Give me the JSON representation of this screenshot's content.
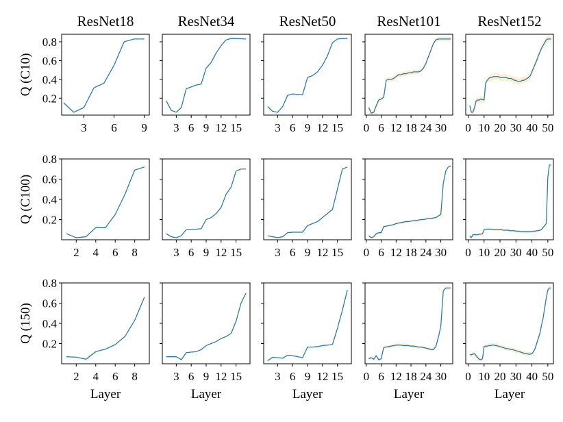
{
  "figure": {
    "column_titles": [
      "ResNet18",
      "ResNet34",
      "ResNet50",
      "ResNet101",
      "ResNet152"
    ],
    "row_ylabels": [
      "Q (C10)",
      "Q (C100)",
      "Q (150)"
    ],
    "xlabel": "Layer"
  },
  "colors": {
    "line": "#2a7ab0",
    "band": "#fbe2ad",
    "axis": "#000000"
  },
  "chart_data": [
    {
      "type": "line",
      "row": 0,
      "col": 0,
      "title": "ResNet18",
      "ylabel": "Q (C10)",
      "xlabel": "",
      "xlim": [
        0.8,
        9.5
      ],
      "ylim": [
        0.02,
        0.88
      ],
      "xticks": [
        3,
        6,
        9
      ],
      "xtick_labels": [
        "3",
        "6",
        "9"
      ],
      "yticks": [
        0.2,
        0.4,
        0.6,
        0.8
      ],
      "ytick_labels": [
        "0.2",
        "0.4",
        "0.6",
        "0.8"
      ],
      "x": [
        1,
        2,
        3,
        4,
        5,
        6,
        7,
        8,
        9
      ],
      "y": [
        0.15,
        0.05,
        0.1,
        0.31,
        0.36,
        0.55,
        0.8,
        0.83,
        0.83
      ],
      "band": 0
    },
    {
      "type": "line",
      "row": 0,
      "col": 1,
      "title": "ResNet34",
      "ylabel": "",
      "xlabel": "",
      "xlim": [
        0.2,
        17.8
      ],
      "ylim": [
        0.02,
        0.88
      ],
      "xticks": [
        3,
        6,
        9,
        12,
        15
      ],
      "xtick_labels": [
        "3",
        "6",
        "9",
        "12",
        "15"
      ],
      "yticks": [
        0.2,
        0.4,
        0.6,
        0.8
      ],
      "ytick_labels": [
        "",
        "",
        "",
        ""
      ],
      "x": [
        1,
        2,
        3,
        4,
        5,
        6,
        7,
        8,
        9,
        10,
        11,
        12,
        13,
        14,
        15,
        16,
        17
      ],
      "y": [
        0.17,
        0.07,
        0.05,
        0.1,
        0.3,
        0.32,
        0.34,
        0.35,
        0.52,
        0.58,
        0.68,
        0.76,
        0.82,
        0.835,
        0.835,
        0.832,
        0.83
      ],
      "band": 0
    },
    {
      "type": "line",
      "row": 0,
      "col": 2,
      "title": "ResNet50",
      "ylabel": "",
      "xlabel": "",
      "xlim": [
        0.2,
        17.8
      ],
      "ylim": [
        0.02,
        0.88
      ],
      "xticks": [
        3,
        6,
        9,
        12,
        15
      ],
      "xtick_labels": [
        "3",
        "6",
        "9",
        "12",
        "15"
      ],
      "yticks": [
        0.2,
        0.4,
        0.6,
        0.8
      ],
      "ytick_labels": [
        "",
        "",
        "",
        ""
      ],
      "x": [
        1,
        2,
        3,
        4,
        5,
        6,
        7,
        8,
        9,
        10,
        11,
        12,
        13,
        14,
        15,
        16,
        17
      ],
      "y": [
        0.11,
        0.06,
        0.05,
        0.11,
        0.23,
        0.245,
        0.24,
        0.235,
        0.42,
        0.44,
        0.48,
        0.55,
        0.65,
        0.79,
        0.83,
        0.835,
        0.835
      ],
      "band": 0
    },
    {
      "type": "line",
      "row": 0,
      "col": 3,
      "title": "ResNet101",
      "ylabel": "",
      "xlabel": "",
      "xlim": [
        -0.5,
        34.8
      ],
      "ylim": [
        0.02,
        0.88
      ],
      "xticks": [
        0,
        6,
        12,
        18,
        24,
        30
      ],
      "xtick_labels": [
        "0",
        "6",
        "12",
        "18",
        "24",
        "30"
      ],
      "yticks": [
        0.2,
        0.4,
        0.6,
        0.8
      ],
      "ytick_labels": [
        "",
        "",
        "",
        ""
      ],
      "x": [
        1,
        2,
        3,
        4,
        5,
        6,
        7,
        8,
        9,
        10,
        11,
        12,
        13,
        14,
        15,
        16,
        17,
        18,
        19,
        20,
        21,
        22,
        23,
        24,
        25,
        26,
        27,
        28,
        29,
        30,
        31,
        32,
        33,
        34
      ],
      "y": [
        0.1,
        0.04,
        0.05,
        0.12,
        0.18,
        0.19,
        0.21,
        0.39,
        0.4,
        0.4,
        0.41,
        0.43,
        0.45,
        0.45,
        0.46,
        0.46,
        0.47,
        0.47,
        0.48,
        0.48,
        0.48,
        0.49,
        0.52,
        0.57,
        0.64,
        0.71,
        0.78,
        0.82,
        0.83,
        0.83,
        0.83,
        0.83,
        0.83,
        0.83
      ],
      "band": 0.025
    },
    {
      "type": "line",
      "row": 0,
      "col": 4,
      "title": "ResNet152",
      "ylabel": "",
      "xlabel": "",
      "xlim": [
        -1.5,
        53.5
      ],
      "ylim": [
        0.02,
        0.88
      ],
      "xticks": [
        0,
        10,
        20,
        30,
        40,
        50
      ],
      "xtick_labels": [
        "0",
        "10",
        "20",
        "30",
        "40",
        "50"
      ],
      "yticks": [
        0.2,
        0.4,
        0.6,
        0.8
      ],
      "ytick_labels": [
        "",
        "",
        "",
        ""
      ],
      "x": [
        1,
        2,
        3,
        4,
        5,
        6,
        7,
        8,
        9,
        10,
        11,
        12,
        13,
        14,
        15,
        16,
        17,
        18,
        19,
        20,
        21,
        22,
        23,
        24,
        25,
        26,
        27,
        28,
        29,
        30,
        31,
        32,
        33,
        34,
        35,
        36,
        37,
        38,
        39,
        40,
        41,
        42,
        43,
        44,
        45,
        46,
        47,
        48,
        49,
        50,
        51,
        52
      ],
      "y": [
        0.12,
        0.05,
        0.05,
        0.1,
        0.17,
        0.18,
        0.18,
        0.19,
        0.185,
        0.18,
        0.36,
        0.39,
        0.41,
        0.42,
        0.42,
        0.43,
        0.43,
        0.43,
        0.43,
        0.42,
        0.42,
        0.42,
        0.42,
        0.42,
        0.41,
        0.41,
        0.41,
        0.4,
        0.39,
        0.39,
        0.38,
        0.38,
        0.38,
        0.39,
        0.39,
        0.4,
        0.41,
        0.42,
        0.44,
        0.48,
        0.52,
        0.56,
        0.6,
        0.65,
        0.69,
        0.73,
        0.76,
        0.79,
        0.82,
        0.83,
        0.83,
        0.83
      ],
      "band": 0.035
    },
    {
      "type": "line",
      "row": 1,
      "col": 0,
      "title": "",
      "ylabel": "Q (C100)",
      "xlabel": "",
      "xlim": [
        0.5,
        9.5
      ],
      "ylim": [
        0.0,
        0.8
      ],
      "xticks": [
        2,
        4,
        6,
        8
      ],
      "xtick_labels": [
        "2",
        "4",
        "6",
        "8"
      ],
      "yticks": [
        0.2,
        0.4,
        0.6,
        0.8
      ],
      "ytick_labels": [
        "0.2",
        "0.4",
        "0.6",
        "0.8"
      ],
      "x": [
        1,
        2,
        3,
        4,
        5,
        6,
        7,
        8,
        9
      ],
      "y": [
        0.06,
        0.02,
        0.03,
        0.12,
        0.12,
        0.25,
        0.45,
        0.69,
        0.72
      ],
      "band": 0
    },
    {
      "type": "line",
      "row": 1,
      "col": 1,
      "title": "",
      "ylabel": "",
      "xlabel": "",
      "xlim": [
        0.2,
        17.8
      ],
      "ylim": [
        0.0,
        0.8
      ],
      "xticks": [
        3,
        6,
        9,
        12,
        15
      ],
      "xtick_labels": [
        "3",
        "6",
        "9",
        "12",
        "15"
      ],
      "yticks": [
        0.2,
        0.4,
        0.6,
        0.8
      ],
      "ytick_labels": [
        "",
        "",
        "",
        ""
      ],
      "x": [
        1,
        2,
        3,
        4,
        5,
        6,
        7,
        8,
        9,
        10,
        11,
        12,
        13,
        14,
        15,
        16,
        17
      ],
      "y": [
        0.06,
        0.03,
        0.02,
        0.04,
        0.1,
        0.1,
        0.105,
        0.11,
        0.2,
        0.22,
        0.26,
        0.32,
        0.45,
        0.52,
        0.68,
        0.7,
        0.7
      ],
      "band": 0
    },
    {
      "type": "line",
      "row": 1,
      "col": 2,
      "title": "",
      "ylabel": "",
      "xlabel": "",
      "xlim": [
        0.2,
        17.8
      ],
      "ylim": [
        0.0,
        0.8
      ],
      "xticks": [
        3,
        6,
        9,
        12,
        15
      ],
      "xtick_labels": [
        "3",
        "6",
        "9",
        "12",
        "15"
      ],
      "yticks": [
        0.2,
        0.4,
        0.6,
        0.8
      ],
      "ytick_labels": [
        "",
        "",
        "",
        ""
      ],
      "x": [
        1,
        2,
        3,
        4,
        5,
        6,
        7,
        8,
        9,
        10,
        11,
        12,
        13,
        14,
        15,
        16,
        17
      ],
      "y": [
        0.04,
        0.03,
        0.02,
        0.03,
        0.07,
        0.075,
        0.075,
        0.075,
        0.14,
        0.16,
        0.18,
        0.22,
        0.26,
        0.3,
        0.5,
        0.7,
        0.72
      ],
      "band": 0
    },
    {
      "type": "line",
      "row": 1,
      "col": 3,
      "title": "",
      "ylabel": "",
      "xlabel": "",
      "xlim": [
        -0.5,
        34.8
      ],
      "ylim": [
        0.0,
        0.8
      ],
      "xticks": [
        0,
        6,
        12,
        18,
        24,
        30
      ],
      "xtick_labels": [
        "0",
        "6",
        "12",
        "18",
        "24",
        "30"
      ],
      "yticks": [
        0.2,
        0.4,
        0.6,
        0.8
      ],
      "ytick_labels": [
        "",
        "",
        "",
        ""
      ],
      "x": [
        1,
        2,
        3,
        4,
        5,
        6,
        7,
        8,
        9,
        10,
        11,
        12,
        13,
        14,
        15,
        16,
        17,
        18,
        19,
        20,
        21,
        22,
        23,
        24,
        25,
        26,
        27,
        28,
        29,
        30,
        31,
        32,
        33,
        34
      ],
      "y": [
        0.04,
        0.02,
        0.03,
        0.06,
        0.07,
        0.07,
        0.13,
        0.135,
        0.14,
        0.145,
        0.15,
        0.16,
        0.165,
        0.17,
        0.175,
        0.18,
        0.18,
        0.185,
        0.19,
        0.19,
        0.195,
        0.2,
        0.2,
        0.205,
        0.21,
        0.21,
        0.215,
        0.22,
        0.235,
        0.25,
        0.56,
        0.68,
        0.72,
        0.73
      ],
      "band": 0.012
    },
    {
      "type": "line",
      "row": 1,
      "col": 4,
      "title": "",
      "ylabel": "",
      "xlabel": "",
      "xlim": [
        -1.5,
        53.5
      ],
      "ylim": [
        0.0,
        0.8
      ],
      "xticks": [
        0,
        10,
        20,
        30,
        40,
        50
      ],
      "xtick_labels": [
        "0",
        "10",
        "20",
        "30",
        "40",
        "50"
      ],
      "yticks": [
        0.2,
        0.4,
        0.6,
        0.8
      ],
      "ytick_labels": [
        "",
        "",
        "",
        ""
      ],
      "x": [
        1,
        2,
        3,
        4,
        5,
        6,
        7,
        8,
        9,
        10,
        11,
        12,
        13,
        14,
        15,
        16,
        17,
        18,
        19,
        20,
        21,
        22,
        23,
        24,
        25,
        26,
        27,
        28,
        29,
        30,
        31,
        32,
        33,
        34,
        35,
        36,
        37,
        38,
        39,
        40,
        41,
        42,
        43,
        44,
        45,
        46,
        47,
        48,
        49,
        50,
        51,
        52
      ],
      "y": [
        0.04,
        0.02,
        0.05,
        0.05,
        0.05,
        0.05,
        0.055,
        0.055,
        0.06,
        0.1,
        0.105,
        0.105,
        0.105,
        0.105,
        0.1,
        0.1,
        0.1,
        0.1,
        0.1,
        0.1,
        0.1,
        0.095,
        0.095,
        0.095,
        0.095,
        0.09,
        0.09,
        0.09,
        0.09,
        0.085,
        0.085,
        0.085,
        0.08,
        0.08,
        0.08,
        0.08,
        0.08,
        0.08,
        0.08,
        0.08,
        0.085,
        0.085,
        0.09,
        0.09,
        0.095,
        0.1,
        0.12,
        0.14,
        0.16,
        0.62,
        0.74,
        0.74
      ],
      "band": 0.012
    },
    {
      "type": "line",
      "row": 2,
      "col": 0,
      "title": "",
      "ylabel": "Q (150)",
      "xlabel": "Layer",
      "xlim": [
        0.5,
        9.5
      ],
      "ylim": [
        0.0,
        0.8
      ],
      "xticks": [
        2,
        4,
        6,
        8
      ],
      "xtick_labels": [
        "2",
        "4",
        "6",
        "8"
      ],
      "yticks": [
        0.2,
        0.4,
        0.6,
        0.8
      ],
      "ytick_labels": [
        "0.2",
        "0.4",
        "0.6",
        "0.8"
      ],
      "x": [
        1,
        2,
        3,
        4,
        5,
        6,
        7,
        8,
        9
      ],
      "y": [
        0.07,
        0.065,
        0.045,
        0.12,
        0.145,
        0.19,
        0.27,
        0.43,
        0.66
      ],
      "band": 0
    },
    {
      "type": "line",
      "row": 2,
      "col": 1,
      "title": "",
      "ylabel": "",
      "xlabel": "Layer",
      "xlim": [
        0.2,
        17.8
      ],
      "ylim": [
        0.0,
        0.8
      ],
      "xticks": [
        3,
        6,
        9,
        12,
        15
      ],
      "xtick_labels": [
        "3",
        "6",
        "9",
        "12",
        "15"
      ],
      "yticks": [
        0.2,
        0.4,
        0.6,
        0.8
      ],
      "ytick_labels": [
        "",
        "",
        "",
        ""
      ],
      "x": [
        1,
        2,
        3,
        4,
        5,
        6,
        7,
        8,
        9,
        10,
        11,
        12,
        13,
        14,
        15,
        16,
        17
      ],
      "y": [
        0.07,
        0.07,
        0.07,
        0.04,
        0.11,
        0.115,
        0.12,
        0.14,
        0.18,
        0.2,
        0.22,
        0.25,
        0.27,
        0.3,
        0.42,
        0.6,
        0.7
      ],
      "band": 0
    },
    {
      "type": "line",
      "row": 2,
      "col": 2,
      "title": "",
      "ylabel": "",
      "xlabel": "Layer",
      "xlim": [
        0.2,
        17.8
      ],
      "ylim": [
        0.0,
        0.8
      ],
      "xticks": [
        3,
        6,
        9,
        12,
        15
      ],
      "xtick_labels": [
        "3",
        "6",
        "9",
        "12",
        "15"
      ],
      "yticks": [
        0.2,
        0.4,
        0.6,
        0.8
      ],
      "ytick_labels": [
        "",
        "",
        "",
        ""
      ],
      "x": [
        1,
        2,
        3,
        4,
        5,
        6,
        7,
        8,
        9,
        10,
        11,
        12,
        13,
        14,
        15,
        16,
        17
      ],
      "y": [
        0.03,
        0.065,
        0.06,
        0.055,
        0.085,
        0.08,
        0.07,
        0.06,
        0.165,
        0.165,
        0.17,
        0.18,
        0.185,
        0.19,
        0.35,
        0.53,
        0.73
      ],
      "band": 0
    },
    {
      "type": "line",
      "row": 2,
      "col": 3,
      "title": "",
      "ylabel": "",
      "xlabel": "Layer",
      "xlim": [
        -0.5,
        34.8
      ],
      "ylim": [
        0.0,
        0.8
      ],
      "xticks": [
        0,
        6,
        12,
        18,
        24,
        30
      ],
      "xtick_labels": [
        "0",
        "6",
        "12",
        "18",
        "24",
        "30"
      ],
      "yticks": [
        0.2,
        0.4,
        0.6,
        0.8
      ],
      "ytick_labels": [
        "",
        "",
        "",
        ""
      ],
      "x": [
        1,
        2,
        3,
        4,
        5,
        6,
        7,
        8,
        9,
        10,
        11,
        12,
        13,
        14,
        15,
        16,
        17,
        18,
        19,
        20,
        21,
        22,
        23,
        24,
        25,
        26,
        27,
        28,
        29,
        30,
        31,
        32,
        33,
        34
      ],
      "y": [
        0.05,
        0.06,
        0.045,
        0.08,
        0.04,
        0.05,
        0.16,
        0.165,
        0.17,
        0.175,
        0.18,
        0.185,
        0.185,
        0.185,
        0.18,
        0.18,
        0.18,
        0.175,
        0.175,
        0.17,
        0.165,
        0.165,
        0.16,
        0.155,
        0.15,
        0.14,
        0.14,
        0.17,
        0.26,
        0.37,
        0.72,
        0.75,
        0.75,
        0.75
      ],
      "band": 0.015
    },
    {
      "type": "line",
      "row": 2,
      "col": 4,
      "title": "",
      "ylabel": "",
      "xlabel": "Layer",
      "xlim": [
        -1.5,
        53.5
      ],
      "ylim": [
        0.0,
        0.8
      ],
      "xticks": [
        0,
        10,
        20,
        30,
        40,
        50
      ],
      "xtick_labels": [
        "0",
        "10",
        "20",
        "30",
        "40",
        "50"
      ],
      "yticks": [
        0.2,
        0.4,
        0.6,
        0.8
      ],
      "ytick_labels": [
        "",
        "",
        "",
        ""
      ],
      "x": [
        1,
        2,
        3,
        4,
        5,
        6,
        7,
        8,
        9,
        10,
        11,
        12,
        13,
        14,
        15,
        16,
        17,
        18,
        19,
        20,
        21,
        22,
        23,
        24,
        25,
        26,
        27,
        28,
        29,
        30,
        31,
        32,
        33,
        34,
        35,
        36,
        37,
        38,
        39,
        40,
        41,
        42,
        43,
        44,
        45,
        46,
        47,
        48,
        49,
        50,
        51,
        52
      ],
      "y": [
        0.09,
        0.09,
        0.095,
        0.1,
        0.08,
        0.06,
        0.045,
        0.04,
        0.05,
        0.17,
        0.175,
        0.175,
        0.18,
        0.18,
        0.185,
        0.185,
        0.18,
        0.18,
        0.175,
        0.17,
        0.165,
        0.16,
        0.155,
        0.15,
        0.15,
        0.145,
        0.14,
        0.14,
        0.135,
        0.13,
        0.125,
        0.12,
        0.115,
        0.11,
        0.105,
        0.1,
        0.1,
        0.095,
        0.095,
        0.1,
        0.12,
        0.15,
        0.2,
        0.25,
        0.3,
        0.38,
        0.45,
        0.55,
        0.65,
        0.73,
        0.75,
        0.75
      ],
      "band": 0.02
    }
  ]
}
